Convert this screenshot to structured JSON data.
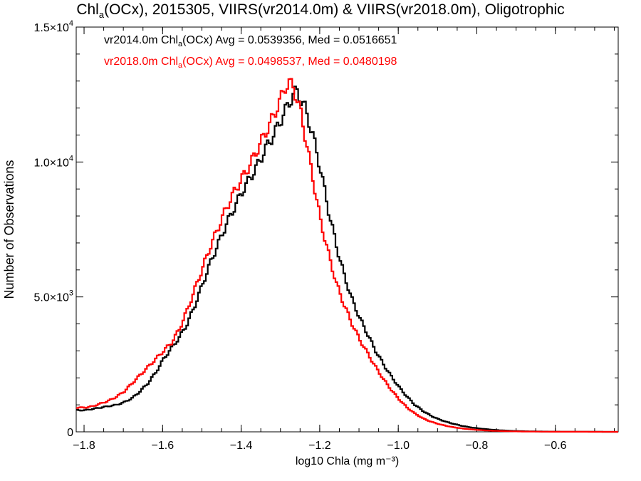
{
  "chart_data": {
    "type": "line",
    "title_parts": {
      "pre": "Chl",
      "sub": "a",
      "post": "(OCx), 2015305, VIIRS(vr2014.0m) & VIIRS(vr2018.0m), Oligotrophic"
    },
    "xlabel": "log10 Chla (mg m⁻³)",
    "ylabel": "Number of Observations",
    "xlim": [
      -1.82,
      -0.44
    ],
    "ylim": [
      0,
      15000
    ],
    "x_ticks": [
      -1.8,
      -1.6,
      -1.4,
      -1.2,
      -1.0,
      -0.8,
      -0.6
    ],
    "x_tick_labels": [
      "−1.8",
      "−1.6",
      "−1.4",
      "−1.2",
      "−1.0",
      "−0.8",
      "−0.6"
    ],
    "y_ticks": [
      {
        "value": 0,
        "mant": "0",
        "exp": ""
      },
      {
        "value": 5000,
        "mant": "5.0×10",
        "exp": "3"
      },
      {
        "value": 10000,
        "mant": "1.0×10",
        "exp": "4"
      },
      {
        "value": 15000,
        "mant": "1.5×10",
        "exp": "4"
      }
    ],
    "grid": false,
    "legend_position": "top-left",
    "annotations": [
      {
        "pre": "vr2014.0m Chl",
        "sub": "a",
        "post": "(OCx) Avg = 0.0539356, Med = 0.0516651",
        "color": "#000000"
      },
      {
        "pre": "vr2018.0m Chl",
        "sub": "a",
        "post": "(OCx) Avg = 0.0498537, Med = 0.0480198",
        "color": "#ff0000"
      }
    ],
    "series": [
      {
        "color": "#000000",
        "x": [
          -1.82,
          -1.8,
          -1.78,
          -1.76,
          -1.74,
          -1.72,
          -1.7,
          -1.68,
          -1.66,
          -1.64,
          -1.62,
          -1.6,
          -1.58,
          -1.56,
          -1.54,
          -1.52,
          -1.5,
          -1.48,
          -1.46,
          -1.44,
          -1.42,
          -1.4,
          -1.38,
          -1.36,
          -1.34,
          -1.32,
          -1.3,
          -1.28,
          -1.27,
          -1.26,
          -1.25,
          -1.24,
          -1.23,
          -1.22,
          -1.2,
          -1.18,
          -1.16,
          -1.14,
          -1.12,
          -1.1,
          -1.08,
          -1.06,
          -1.04,
          -1.02,
          -1.0,
          -0.98,
          -0.96,
          -0.94,
          -0.92,
          -0.9,
          -0.88,
          -0.86,
          -0.84,
          -0.82,
          -0.8,
          -0.78,
          -0.76,
          -0.74,
          -0.72,
          -0.7,
          -0.68,
          -0.66,
          -0.64,
          -0.62,
          -0.6,
          -0.55,
          -0.5,
          -0.44
        ],
        "y": [
          800,
          800,
          850,
          900,
          950,
          1000,
          1100,
          1250,
          1500,
          1800,
          2200,
          2700,
          3100,
          3500,
          4000,
          4700,
          5500,
          6300,
          7000,
          7700,
          8300,
          8900,
          9400,
          9900,
          10500,
          11000,
          11600,
          12200,
          12500,
          12600,
          12300,
          12000,
          11500,
          11000,
          9700,
          8200,
          6900,
          5800,
          4900,
          4200,
          3600,
          3000,
          2500,
          2050,
          1650,
          1300,
          1000,
          780,
          600,
          470,
          370,
          290,
          220,
          170,
          130,
          100,
          75,
          55,
          40,
          30,
          22,
          16,
          12,
          9,
          7,
          4,
          2,
          0
        ]
      },
      {
        "color": "#ff0000",
        "x": [
          -1.82,
          -1.8,
          -1.78,
          -1.76,
          -1.74,
          -1.72,
          -1.7,
          -1.68,
          -1.66,
          -1.64,
          -1.62,
          -1.6,
          -1.58,
          -1.56,
          -1.54,
          -1.52,
          -1.5,
          -1.48,
          -1.46,
          -1.44,
          -1.42,
          -1.4,
          -1.38,
          -1.36,
          -1.34,
          -1.32,
          -1.3,
          -1.29,
          -1.28,
          -1.27,
          -1.26,
          -1.25,
          -1.24,
          -1.22,
          -1.2,
          -1.18,
          -1.16,
          -1.14,
          -1.12,
          -1.1,
          -1.08,
          -1.06,
          -1.04,
          -1.02,
          -1.0,
          -0.98,
          -0.96,
          -0.94,
          -0.92,
          -0.9,
          -0.88,
          -0.86,
          -0.84,
          -0.82,
          -0.8,
          -0.78,
          -0.76,
          -0.74,
          -0.72,
          -0.7,
          -0.68,
          -0.66,
          -0.64,
          -0.62,
          -0.6,
          -0.55,
          -0.5,
          -0.44
        ],
        "y": [
          900,
          900,
          950,
          1050,
          1150,
          1300,
          1500,
          1800,
          2100,
          2400,
          2700,
          3000,
          3300,
          3800,
          4500,
          5300,
          6100,
          6900,
          7600,
          8300,
          8900,
          9400,
          9900,
          10500,
          11100,
          11700,
          12400,
          12800,
          12900,
          12800,
          12300,
          11800,
          11000,
          9400,
          7800,
          6600,
          5500,
          4700,
          4000,
          3400,
          2900,
          2400,
          1950,
          1550,
          1200,
          900,
          680,
          500,
          380,
          290,
          220,
          165,
          125,
          95,
          70,
          52,
          38,
          28,
          20,
          15,
          11,
          8,
          6,
          4,
          3,
          2,
          1,
          0
        ]
      }
    ]
  }
}
